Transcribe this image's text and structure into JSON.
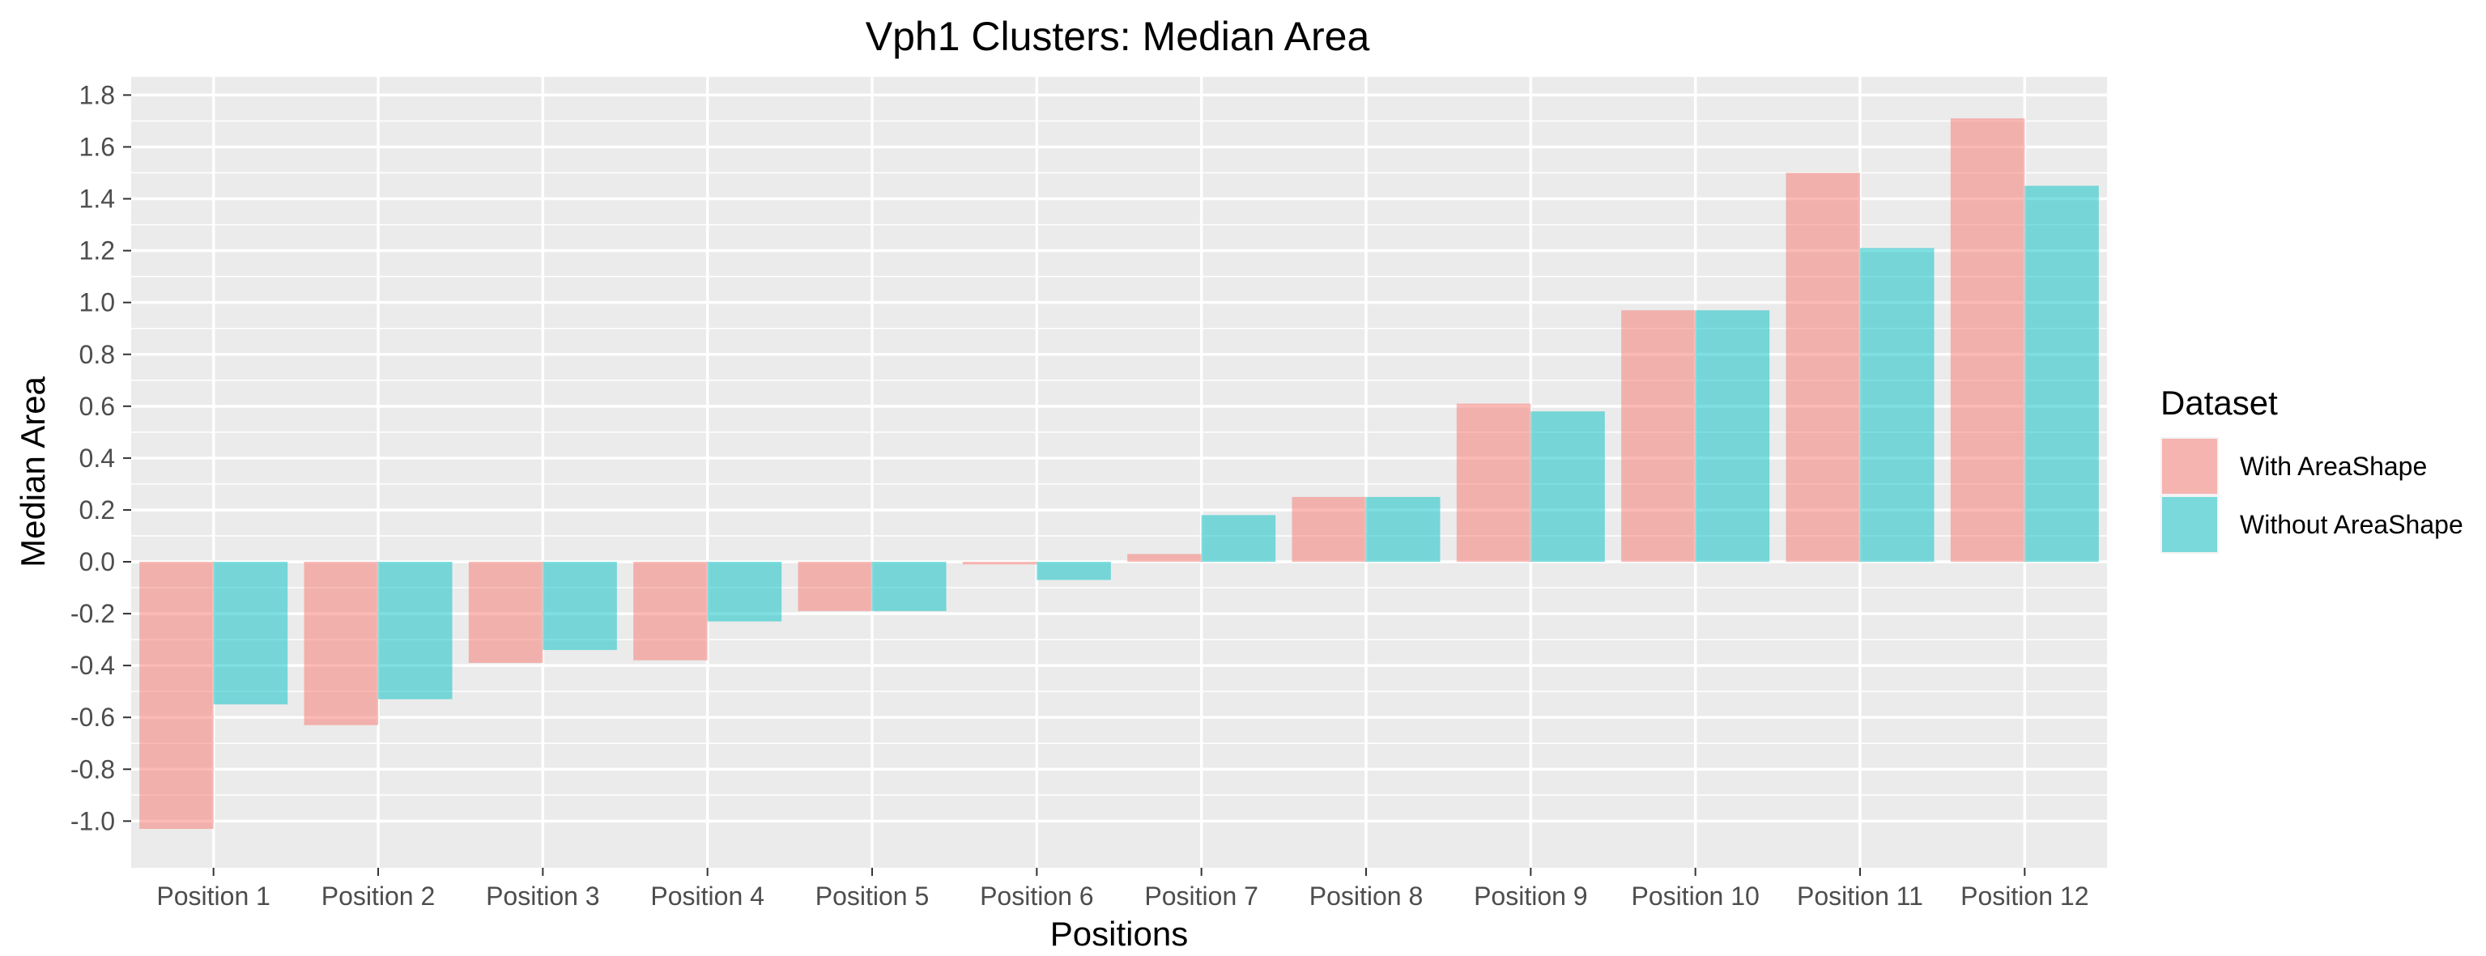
{
  "chart_data": {
    "type": "bar",
    "title": "Vph1 Clusters: Median Area",
    "xlabel": "Positions",
    "ylabel": "Median Area",
    "categories": [
      "Position 1",
      "Position 2",
      "Position 3",
      "Position 4",
      "Position 5",
      "Position 6",
      "Position 7",
      "Position 8",
      "Position 9",
      "Position 10",
      "Position 11",
      "Position 12"
    ],
    "series": [
      {
        "name": "With AreaShape",
        "color": "#F8766D",
        "values": [
          -1.03,
          -0.63,
          -0.39,
          -0.38,
          -0.19,
          -0.01,
          0.03,
          0.25,
          0.61,
          0.97,
          1.5,
          1.71
        ]
      },
      {
        "name": "Without AreaShape",
        "color": "#00BFC4",
        "values": [
          -0.55,
          -0.53,
          -0.34,
          -0.23,
          -0.19,
          -0.07,
          0.18,
          0.25,
          0.58,
          0.97,
          1.21,
          1.45
        ]
      }
    ],
    "ylim": [
      -1.18,
      1.87
    ],
    "yticks": [
      -1.0,
      -0.8,
      -0.6,
      -0.4,
      -0.2,
      0.0,
      0.2,
      0.4,
      0.6,
      0.8,
      1.0,
      1.2,
      1.4,
      1.6,
      1.8
    ],
    "ytick_labels": [
      "-1.0",
      "-0.8",
      "-0.6",
      "-0.4",
      "-0.2",
      "0.0",
      "0.2",
      "0.4",
      "0.6",
      "0.8",
      "1.0",
      "1.2",
      "1.4",
      "1.6",
      "1.8"
    ],
    "bar_opacity": 0.5,
    "grid": true,
    "panel_background": "#EBEBEB",
    "legend": {
      "title": "Dataset",
      "position": "right"
    }
  }
}
